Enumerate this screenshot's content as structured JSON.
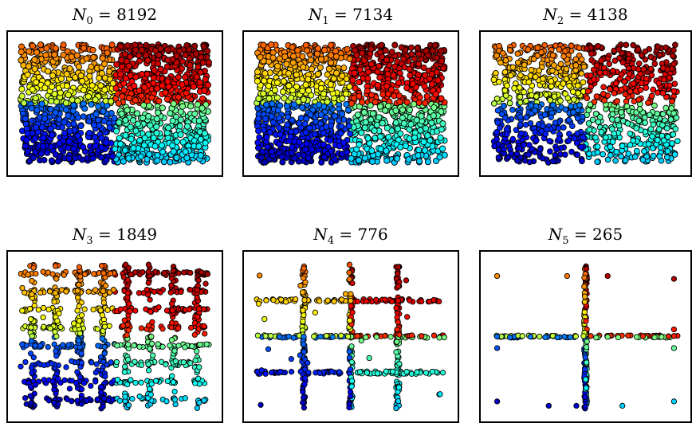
{
  "chart_data": [
    {
      "type": "scatter",
      "label_base": "N",
      "label_sub": "0",
      "count": "8192",
      "n_points": 8192,
      "pattern": "dense_uniform",
      "colormap": "jet",
      "quadrants": [
        "top-left: yellow/green",
        "top-right: orange/red",
        "bottom-left: blue",
        "bottom-right: cyan/green"
      ]
    },
    {
      "type": "scatter",
      "label_base": "N",
      "label_sub": "1",
      "count": "7134",
      "n_points": 7134,
      "pattern": "dense_uniform",
      "colormap": "jet"
    },
    {
      "type": "scatter",
      "label_base": "N",
      "label_sub": "2",
      "count": "4138",
      "n_points": 4138,
      "pattern": "grid_with_gaps",
      "colormap": "jet"
    },
    {
      "type": "scatter",
      "label_base": "N",
      "label_sub": "3",
      "count": "1849",
      "n_points": 1849,
      "pattern": "grid_lines_8",
      "colormap": "jet"
    },
    {
      "type": "scatter",
      "label_base": "N",
      "label_sub": "4",
      "count": "776",
      "n_points": 776,
      "pattern": "grid_lines_4",
      "colormap": "jet"
    },
    {
      "type": "scatter",
      "label_base": "N",
      "label_sub": "5",
      "count": "265",
      "n_points": 265,
      "pattern": "cross",
      "colormap": "jet"
    }
  ]
}
